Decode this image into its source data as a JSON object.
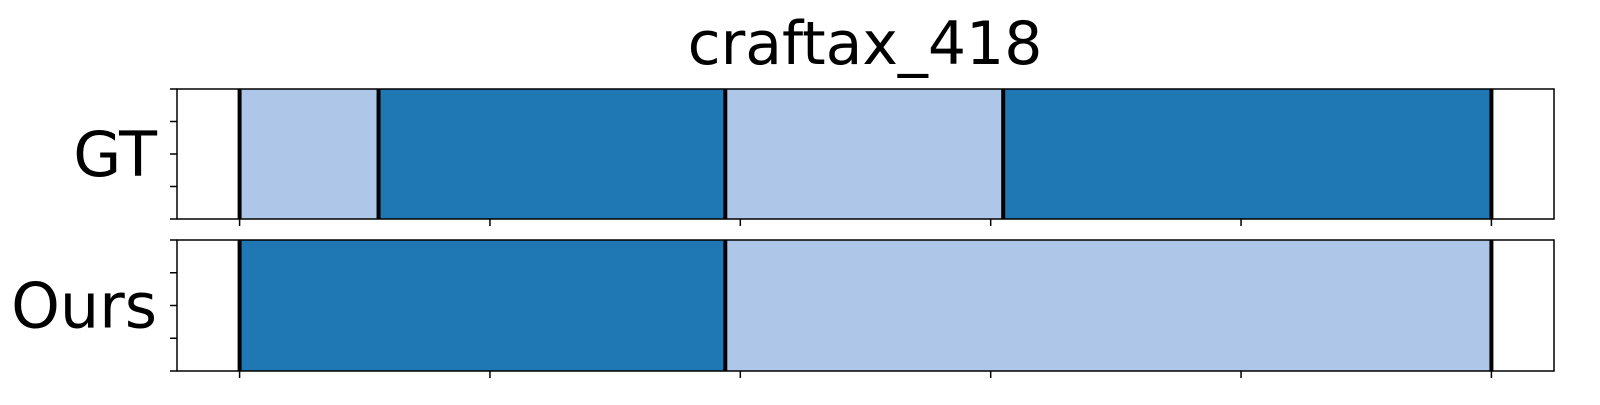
{
  "chart_data": {
    "type": "segmentation-strip",
    "title": "craftax_418",
    "x_range": [
      -50,
      1050
    ],
    "xticks": [
      0,
      200,
      400,
      600,
      800,
      1000
    ],
    "rows": [
      {
        "label": "GT",
        "segments": [
          {
            "start": 0,
            "end": 111,
            "class": "light"
          },
          {
            "start": 111,
            "end": 388,
            "class": "dark"
          },
          {
            "start": 388,
            "end": 610,
            "class": "light"
          },
          {
            "start": 610,
            "end": 1000,
            "class": "dark"
          }
        ],
        "boundaries": [
          0,
          111,
          388,
          610,
          1000
        ]
      },
      {
        "label": "Ours",
        "segments": [
          {
            "start": 0,
            "end": 388,
            "class": "dark"
          },
          {
            "start": 388,
            "end": 1000,
            "class": "light"
          }
        ],
        "boundaries": [
          0,
          388,
          1000
        ]
      }
    ],
    "colors": {
      "light": "#aec7e8",
      "dark": "#1f77b4",
      "boundary": "#000000",
      "frame": "#000000"
    },
    "grid": false,
    "legend": "none"
  }
}
